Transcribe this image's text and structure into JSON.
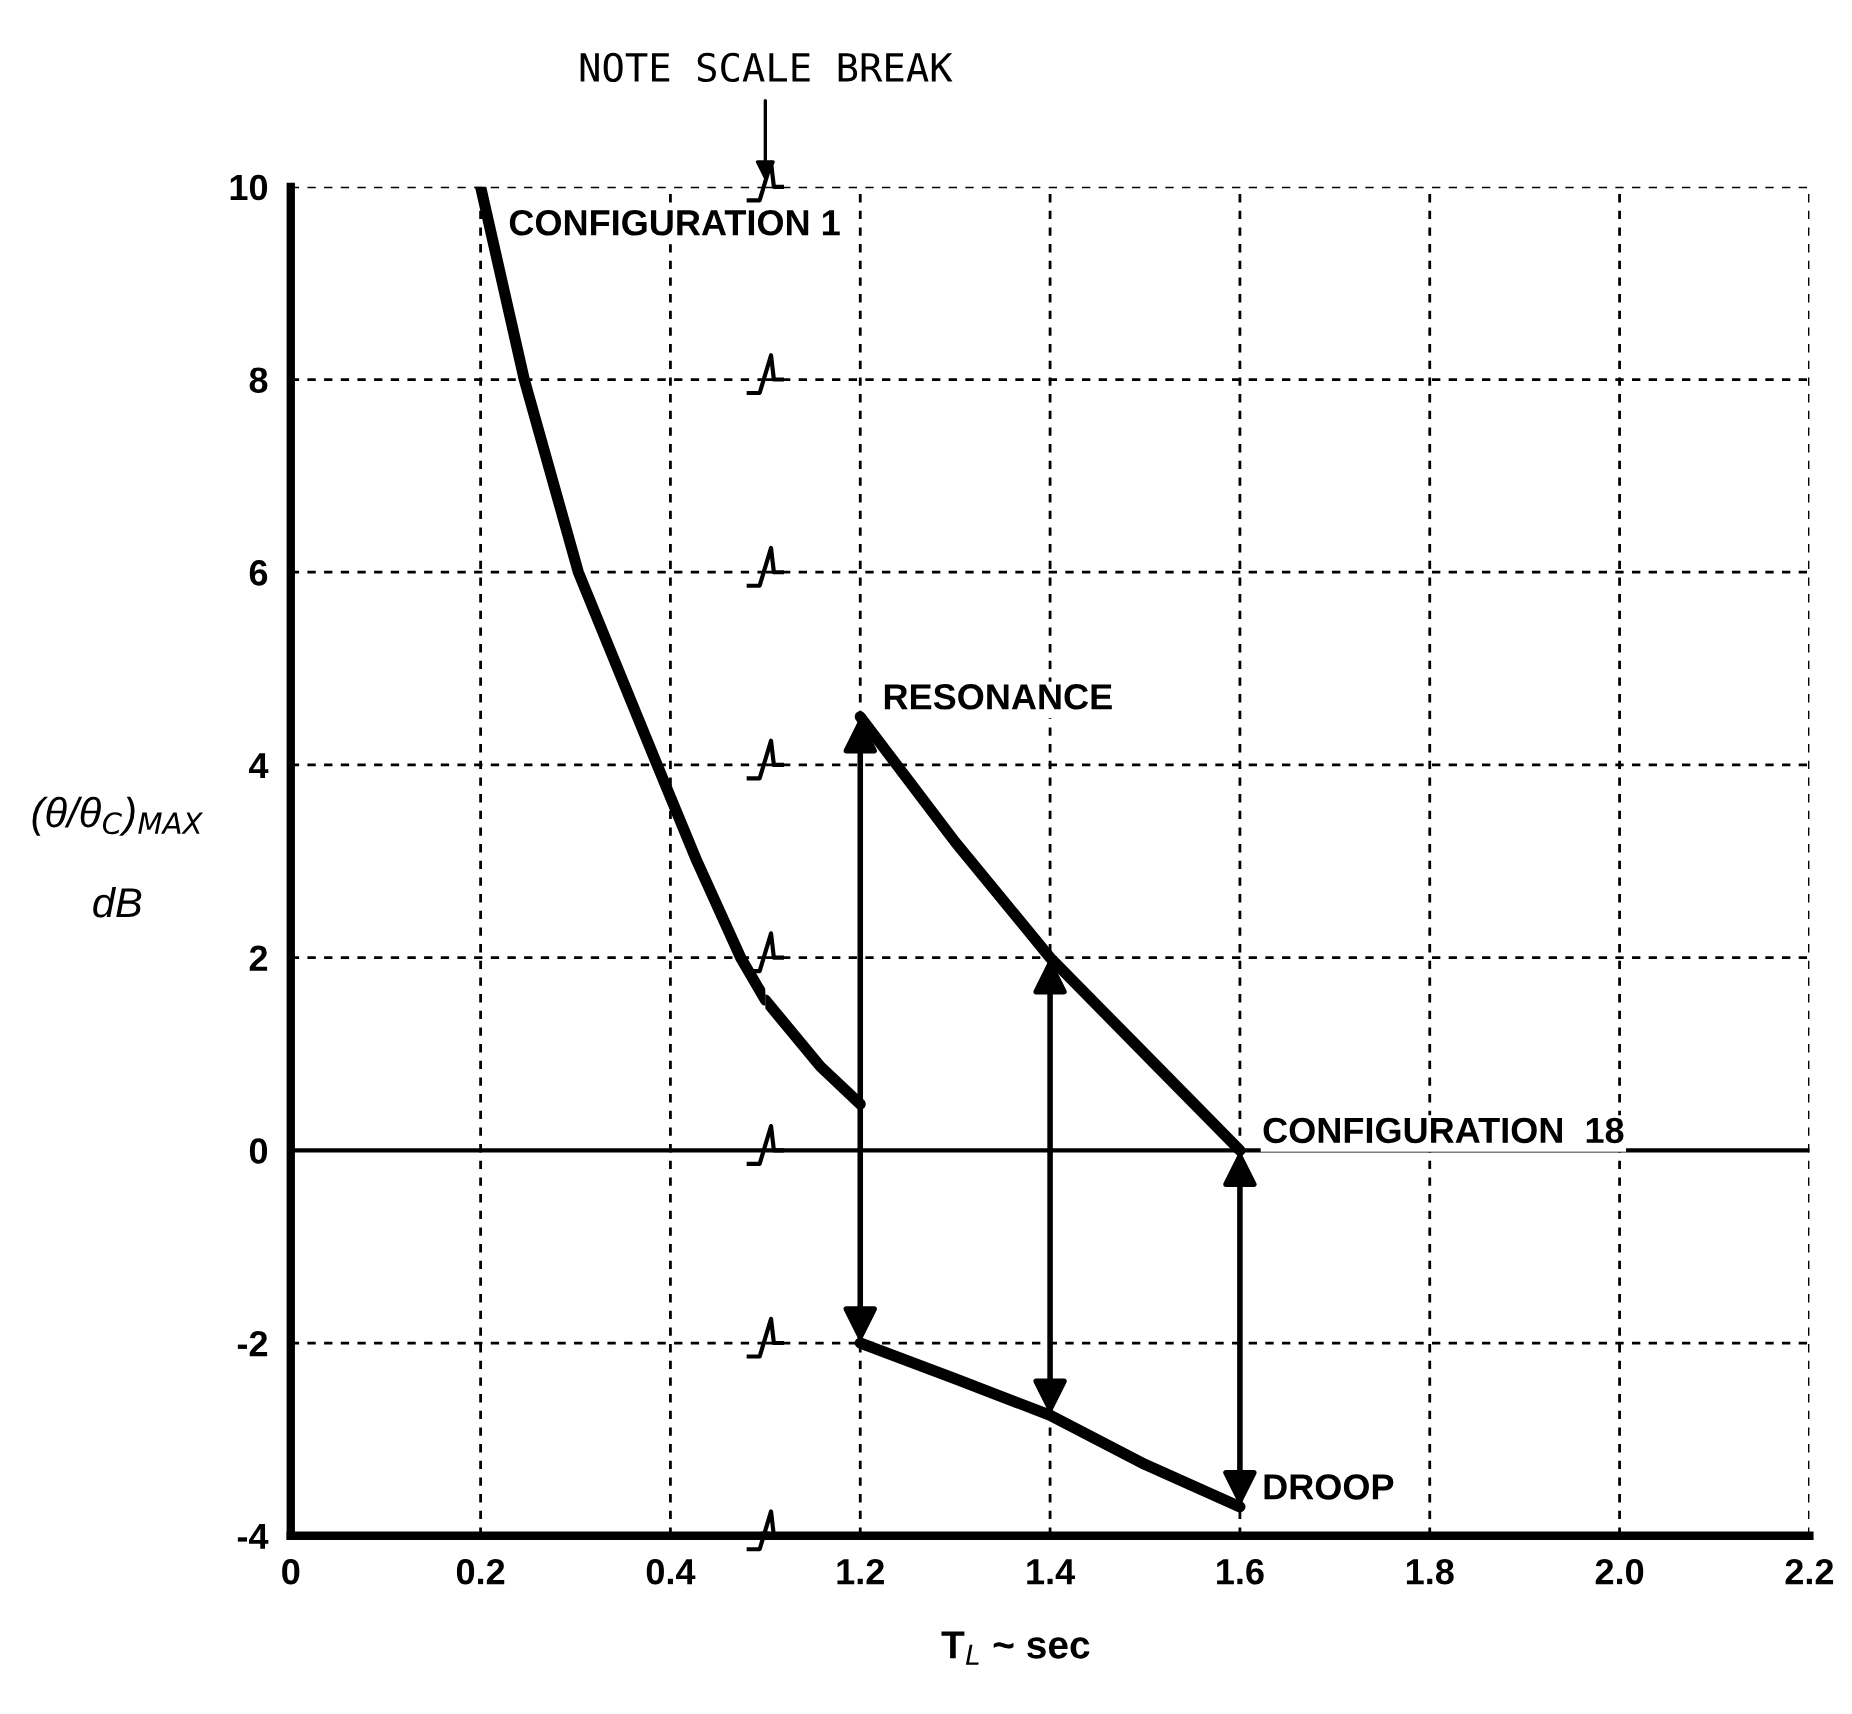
{
  "chart_data": [
    {
      "type": "line",
      "ylabel": "(θ/θ$_{C}$)$_{MAX}$\n\ndB",
      "xlim": [
        0,
        0.5
      ],
      "xticks": [
        0,
        0.2,
        0.4
      ],
      "ylim": [
        -4,
        10
      ],
      "yticks": [
        -4,
        -2,
        0,
        2,
        4,
        6,
        8,
        10
      ],
      "grid": true,
      "line_style": "solid",
      "marker": "none",
      "ref_lines": [
        {
          "axis": "y",
          "value": 0,
          "color": "#000000",
          "line_style": "solid"
        }
      ],
      "series": [
        {
          "color": "#000000",
          "x": [
            0.2,
            0.246,
            0.303,
            0.386,
            0.428,
            0.474,
            0.5
          ],
          "values": [
            10,
            8,
            6,
            4,
            3,
            2,
            1.56
          ]
        }
      ],
      "annotations": [
        "NOTE SCALE BREAK",
        {
          "text": "CONFIGURATION 1",
          "x": 0.2,
          "y": 10
        }
      ]
    },
    {
      "type": "line",
      "xlabel": "T$_{L}$ ~ sec",
      "xlim": [
        1.1,
        2.2
      ],
      "xticks": [
        1.2,
        1.4,
        1.6,
        1.8,
        {
          "value": 2.0,
          "label": "2.0"
        },
        2.2
      ],
      "ylim": [
        -4,
        10
      ],
      "yticks": [
        -4,
        -2,
        0,
        2,
        4,
        6,
        8,
        10
      ],
      "tick_labels": "x",
      "grid": true,
      "line_style": "solid",
      "marker": "none",
      "ref_lines": [
        {
          "axis": "y",
          "value": 0,
          "color": "#000000",
          "line_style": "solid"
        }
      ],
      "series": [
        {
          "color": "#000000",
          "x": [
            1.1,
            1.158,
            1.2
          ],
          "values": [
            1.56,
            0.87,
            0.48
          ]
        },
        {
          "color": "#000000",
          "x": [
            1.2,
            1.3,
            1.4,
            1.5,
            1.6
          ],
          "values": [
            4.5,
            3.2,
            2,
            1.0,
            0
          ]
        },
        {
          "color": "#000000",
          "x": [
            1.2,
            1.3,
            1.4,
            1.5,
            1.6
          ],
          "values": [
            -2,
            -2.37,
            -2.75,
            -3.26,
            -3.7
          ]
        }
      ],
      "annotations": [
        {
          "text": "RESONANCE",
          "x": 1.2,
          "y": 4.5
        },
        {
          "text": "CONFIGURATION  18",
          "x": 1.6,
          "y": 0
        },
        {
          "text": "DROOP",
          "x": 1.6,
          "y": -3.7
        }
      ]
    }
  ]
}
